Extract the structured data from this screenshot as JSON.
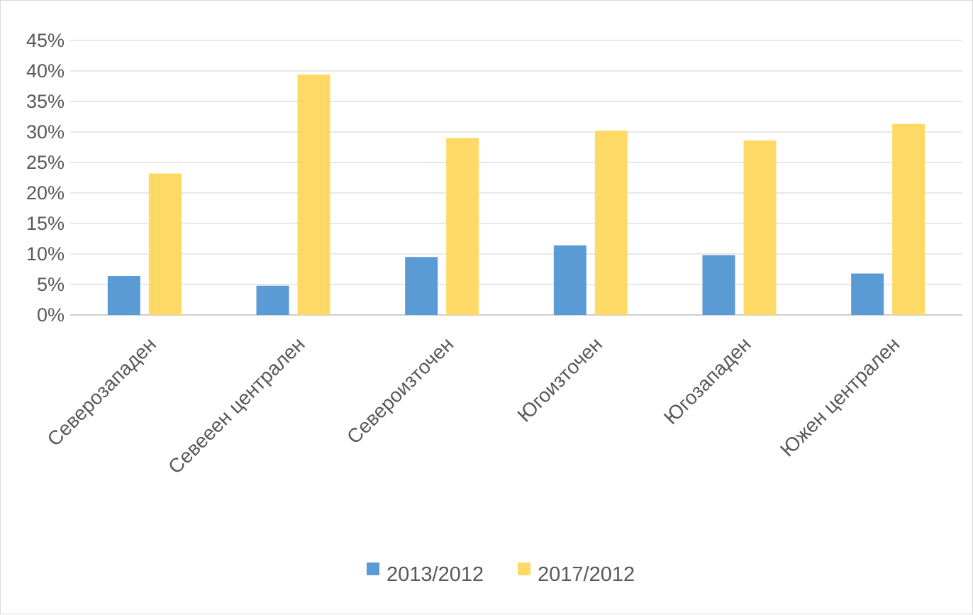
{
  "chart_data": {
    "type": "bar",
    "title": "",
    "xlabel": "",
    "ylabel": "",
    "categories": [
      "Северозападен",
      "Севеeен централен",
      "Североизточен",
      "Югоизточен",
      "Югозападен",
      "Южен централен"
    ],
    "series": [
      {
        "name": "2013/2012",
        "color": "#5b9bd5",
        "values": [
          0.064,
          0.048,
          0.095,
          0.114,
          0.098,
          0.068
        ]
      },
      {
        "name": "2017/2012",
        "color": "#ffd966",
        "values": [
          0.232,
          0.394,
          0.29,
          0.302,
          0.286,
          0.313
        ]
      }
    ],
    "ylim": [
      0,
      0.45
    ],
    "yticks": [
      0,
      0.05,
      0.1,
      0.15,
      0.2,
      0.25,
      0.3,
      0.35,
      0.4,
      0.45
    ],
    "ytick_labels": [
      "0%",
      "5%",
      "10%",
      "15%",
      "20%",
      "25%",
      "30%",
      "35%",
      "40%",
      "45%"
    ],
    "grid": true,
    "legend_position": "bottom"
  }
}
